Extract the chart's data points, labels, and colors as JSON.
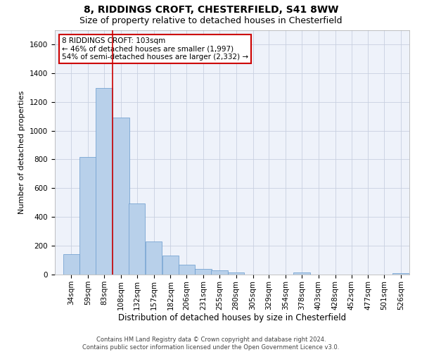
{
  "title1": "8, RIDDINGS CROFT, CHESTERFIELD, S41 8WW",
  "title2": "Size of property relative to detached houses in Chesterfield",
  "xlabel": "Distribution of detached houses by size in Chesterfield",
  "ylabel": "Number of detached properties",
  "footer1": "Contains HM Land Registry data © Crown copyright and database right 2024.",
  "footer2": "Contains public sector information licensed under the Open Government Licence v3.0.",
  "annotation_line1": "8 RIDDINGS CROFT: 103sqm",
  "annotation_line2": "← 46% of detached houses are smaller (1,997)",
  "annotation_line3": "54% of semi-detached houses are larger (2,332) →",
  "bar_color": "#b8d0ea",
  "bar_edge_color": "#6699cc",
  "categories": [
    "34sqm",
    "59sqm",
    "83sqm",
    "108sqm",
    "132sqm",
    "157sqm",
    "182sqm",
    "206sqm",
    "231sqm",
    "255sqm",
    "280sqm",
    "305sqm",
    "329sqm",
    "354sqm",
    "378sqm",
    "403sqm",
    "428sqm",
    "452sqm",
    "477sqm",
    "501sqm",
    "526sqm"
  ],
  "bin_edges": [
    34,
    59,
    83,
    108,
    132,
    157,
    182,
    206,
    231,
    255,
    280,
    305,
    329,
    354,
    378,
    403,
    428,
    452,
    477,
    501,
    526
  ],
  "bin_width": 25,
  "values": [
    140,
    815,
    1295,
    1090,
    495,
    230,
    130,
    68,
    38,
    28,
    15,
    0,
    0,
    0,
    15,
    0,
    0,
    0,
    0,
    0,
    12
  ],
  "ylim": [
    0,
    1700
  ],
  "yticks": [
    0,
    200,
    400,
    600,
    800,
    1000,
    1200,
    1400,
    1600
  ],
  "xlim_left": 22,
  "xlim_right": 551,
  "grid_color": "#c8d0e0",
  "background_color": "#eef2fa",
  "annotation_box_facecolor": "#ffffff",
  "annotation_box_edgecolor": "#cc0000",
  "vline_color": "#cc0000",
  "vline_x": 108,
  "title1_fontsize": 10,
  "title2_fontsize": 9,
  "ylabel_fontsize": 8,
  "xlabel_fontsize": 8.5,
  "tick_fontsize": 7.5,
  "annot_fontsize": 7.5,
  "footer_fontsize": 6
}
